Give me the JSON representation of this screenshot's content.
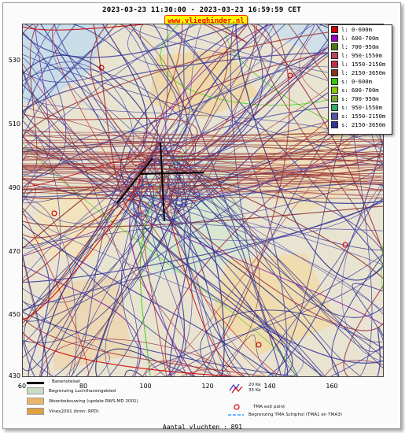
{
  "header": {
    "time_range": "2023-03-23 11:30:00 - 2023-03-23 16:59:59 CET",
    "site_badge": "www.vlieghinder.nl"
  },
  "axes": {
    "y_ticks": [
      "530",
      "510",
      "490",
      "470",
      "450",
      "430"
    ],
    "x_ticks": [
      "60",
      "80",
      "100",
      "120",
      "140",
      "160"
    ]
  },
  "legend": {
    "items": [
      {
        "label": "l: 0-600m",
        "color": "#cc0000"
      },
      {
        "label": "l: 600-700m",
        "color": "#9900cc"
      },
      {
        "label": "l: 700-950m",
        "color": "#4b7a12"
      },
      {
        "label": "l: 950-1550m",
        "color": "#c0435e"
      },
      {
        "label": "l: 1550-2150m",
        "color": "#c0304d"
      },
      {
        "label": "l: 2150-3650m",
        "color": "#8a3322"
      },
      {
        "label": "s: 0-600m",
        "color": "#33cc00"
      },
      {
        "label": "s: 600-700m",
        "color": "#88cc00"
      },
      {
        "label": "s: 700-950m",
        "color": "#77aa33"
      },
      {
        "label": "s: 950-1550m",
        "color": "#33aa66"
      },
      {
        "label": "s: 1550-2150m",
        "color": "#5555aa"
      },
      {
        "label": "s: 2150-3650m",
        "color": "#333399"
      }
    ]
  },
  "bottom_legend": {
    "runways": "Banenstelsel",
    "airport_boundary": "Begrenzing Luchthavengebied",
    "housing": "Woonbebouwing (update RWS-MD 2001)",
    "vinex": "Vinex2001 (bron: RPD)",
    "noise_contours_1": "20 Ke",
    "noise_contours_2": "35 Ke",
    "tma_exit": "TMA exit point",
    "tma_boundary": "Begrenzing TMA Schiphol  (TMA1 en TMA3)",
    "colors": {
      "airport_boundary": "#c9dcc5",
      "housing": "#e8b76a",
      "vinex": "#e0a040"
    }
  },
  "footer": {
    "flight_count": "Aantal vluchten : 891"
  }
}
